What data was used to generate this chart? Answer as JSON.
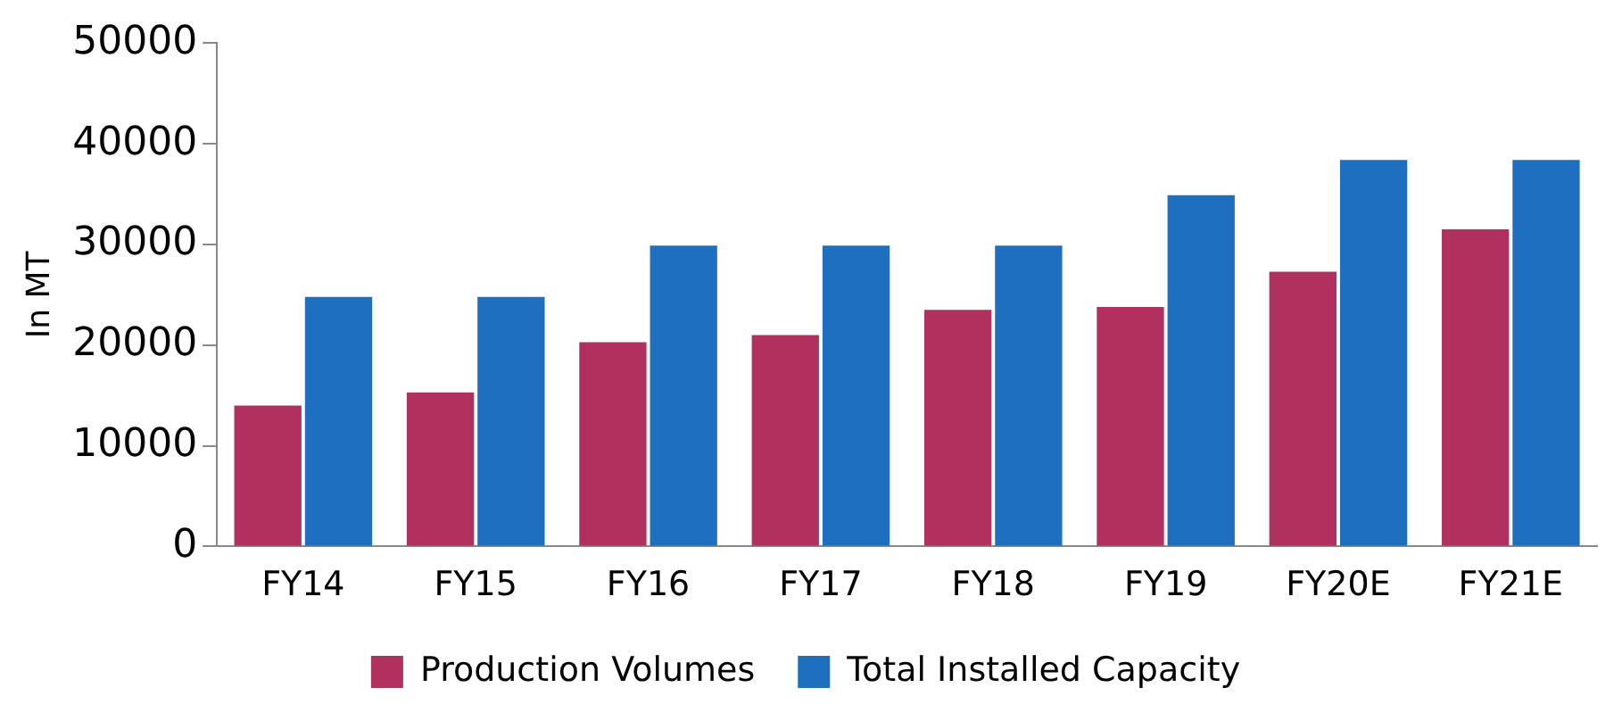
{
  "chart_data": {
    "type": "bar",
    "ylabel": "In MT",
    "categories": [
      "FY14",
      "FY15",
      "FY16",
      "FY17",
      "FY18",
      "FY19",
      "FY20E",
      "FY21E"
    ],
    "series": [
      {
        "name": "Production Volumes",
        "color": "#b03060",
        "values": [
          14000,
          15300,
          20300,
          21000,
          23500,
          23800,
          27300,
          31500
        ]
      },
      {
        "name": "Total Installed Capacity",
        "color": "#1f6fc0",
        "values": [
          24800,
          24800,
          29900,
          29900,
          29900,
          34900,
          38400,
          38400
        ]
      }
    ],
    "ylim": [
      0,
      50000
    ],
    "yticks": [
      0,
      10000,
      20000,
      30000,
      40000,
      50000
    ],
    "grid": false,
    "legend": "bottom"
  }
}
